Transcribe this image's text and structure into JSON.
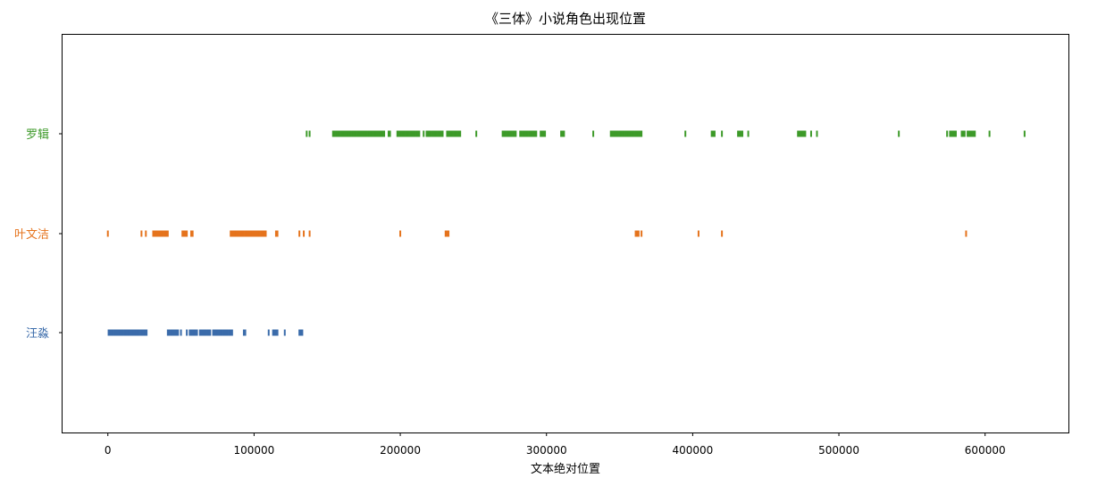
{
  "chart_data": {
    "type": "eventplot",
    "title": "《三体》小说角色出现位置",
    "xlabel": "文本绝对位置",
    "ylabel": "",
    "xlim": [
      -31000,
      657000
    ],
    "xticks": [
      0,
      100000,
      200000,
      300000,
      400000,
      500000,
      600000
    ],
    "grid": false,
    "series": [
      {
        "name": "汪淼",
        "color": "#3A6BAA",
        "positions": [
          500,
          1500,
          2500,
          3500,
          4500,
          5500,
          6500,
          7500,
          8500,
          9500,
          10500,
          11500,
          12500,
          13500,
          14500,
          15500,
          16500,
          17500,
          18500,
          19500,
          20500,
          21500,
          22500,
          23500,
          24500,
          25500,
          26500,
          41000,
          42000,
          43000,
          44000,
          45000,
          46000,
          47000,
          48000,
          50000,
          54000,
          56000,
          57000,
          58000,
          59000,
          60000,
          61000,
          63000,
          64000,
          65000,
          66000,
          67000,
          68000,
          69000,
          70000,
          72000,
          73000,
          74000,
          75000,
          76000,
          77000,
          78000,
          79000,
          80000,
          81000,
          82000,
          83000,
          84000,
          85000,
          93000,
          94000,
          110000,
          113000,
          114000,
          115000,
          116000,
          121000,
          131000,
          132000,
          133000
        ]
      },
      {
        "name": "叶文洁",
        "color": "#E5731C",
        "positions": [
          0,
          23000,
          26000,
          31000,
          32000,
          33000,
          34000,
          35000,
          36000,
          37000,
          38000,
          39000,
          40000,
          41000,
          51000,
          52000,
          53000,
          54000,
          57000,
          58000,
          84000,
          85000,
          86000,
          87000,
          88000,
          89000,
          90000,
          91000,
          92000,
          93000,
          94000,
          95000,
          96000,
          97000,
          98000,
          99000,
          100000,
          101000,
          102000,
          103000,
          104000,
          105000,
          106000,
          107000,
          108000,
          115000,
          116000,
          131000,
          134000,
          138000,
          200000,
          231000,
          232000,
          233000,
          361000,
          362000,
          363000,
          365000,
          404000,
          420000,
          587000
        ]
      },
      {
        "name": "罗辑",
        "color": "#3D9A29",
        "positions": [
          136000,
          138000,
          154000,
          155000,
          156000,
          157000,
          158000,
          159000,
          160000,
          161000,
          162000,
          163000,
          164000,
          165000,
          166000,
          167000,
          168000,
          169000,
          170000,
          171000,
          172000,
          173000,
          174000,
          175000,
          176000,
          177000,
          178000,
          179000,
          180000,
          181000,
          182000,
          183000,
          184000,
          185000,
          186000,
          187000,
          188000,
          189000,
          192000,
          193000,
          198000,
          199000,
          200000,
          201000,
          202000,
          203000,
          204000,
          205000,
          206000,
          207000,
          208000,
          209000,
          210000,
          211000,
          212000,
          213000,
          216000,
          218000,
          219000,
          220000,
          221000,
          222000,
          223000,
          224000,
          225000,
          226000,
          227000,
          228000,
          229000,
          232000,
          233000,
          234000,
          235000,
          236000,
          237000,
          238000,
          239000,
          240000,
          241000,
          252000,
          270000,
          271000,
          272000,
          273000,
          274000,
          275000,
          276000,
          277000,
          278000,
          279000,
          282000,
          283000,
          284000,
          285000,
          286000,
          287000,
          288000,
          289000,
          290000,
          291000,
          292000,
          293000,
          296000,
          297000,
          298000,
          299000,
          310000,
          311000,
          312000,
          332000,
          344000,
          345000,
          346000,
          347000,
          348000,
          349000,
          350000,
          351000,
          352000,
          353000,
          354000,
          355000,
          356000,
          357000,
          358000,
          359000,
          360000,
          361000,
          362000,
          363000,
          364000,
          365000,
          395000,
          413000,
          414000,
          415000,
          420000,
          431000,
          432000,
          433000,
          434000,
          438000,
          472000,
          473000,
          474000,
          475000,
          476000,
          477000,
          481000,
          485000,
          541000,
          574000,
          576000,
          577000,
          578000,
          579000,
          580000,
          584000,
          585000,
          586000,
          588000,
          589000,
          590000,
          591000,
          592000,
          593000,
          603000,
          627000
        ]
      }
    ]
  }
}
